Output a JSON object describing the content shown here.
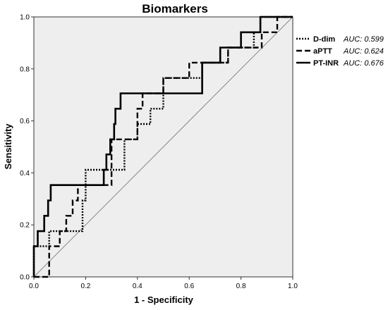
{
  "chart_data": {
    "type": "line",
    "title": "Biomarkers",
    "xlabel": "1 - Specificity",
    "ylabel": "Sensitivity",
    "xlim": [
      0,
      1
    ],
    "ylim": [
      0,
      1
    ],
    "x_ticks": [
      "0.0",
      "0.2",
      "0.4",
      "0.6",
      "0.8",
      "1.0"
    ],
    "y_ticks": [
      "0.0",
      "0.2",
      "0.4",
      "0.6",
      "0.8",
      "1.0"
    ],
    "grid": false,
    "legend_position": "top-right",
    "reference_line": {
      "from": [
        0,
        0
      ],
      "to": [
        1,
        1
      ]
    },
    "series": [
      {
        "name": "D-dim",
        "auc": "AUC: 0.599",
        "style": "dotted",
        "points": [
          [
            0,
            0
          ],
          [
            0,
            0.118
          ],
          [
            0.059,
            0.118
          ],
          [
            0.059,
            0.176
          ],
          [
            0.188,
            0.176
          ],
          [
            0.188,
            0.294
          ],
          [
            0.2,
            0.294
          ],
          [
            0.2,
            0.412
          ],
          [
            0.35,
            0.412
          ],
          [
            0.35,
            0.529
          ],
          [
            0.4,
            0.529
          ],
          [
            0.4,
            0.588
          ],
          [
            0.45,
            0.588
          ],
          [
            0.45,
            0.647
          ],
          [
            0.5,
            0.647
          ],
          [
            0.5,
            0.765
          ],
          [
            0.55,
            0.765
          ],
          [
            0.65,
            0.765
          ],
          [
            0.65,
            0.824
          ],
          [
            0.75,
            0.824
          ],
          [
            0.75,
            0.882
          ],
          [
            0.85,
            0.882
          ],
          [
            0.85,
            0.941
          ],
          [
            0.875,
            0.941
          ],
          [
            0.875,
            1
          ],
          [
            1,
            1
          ]
        ]
      },
      {
        "name": "aPTT",
        "auc": "AUC: 0.624",
        "style": "dashed",
        "points": [
          [
            0,
            0
          ],
          [
            0.059,
            0
          ],
          [
            0.059,
            0.118
          ],
          [
            0.1,
            0.118
          ],
          [
            0.1,
            0.176
          ],
          [
            0.125,
            0.176
          ],
          [
            0.125,
            0.235
          ],
          [
            0.15,
            0.235
          ],
          [
            0.15,
            0.294
          ],
          [
            0.17,
            0.294
          ],
          [
            0.17,
            0.353
          ],
          [
            0.3,
            0.353
          ],
          [
            0.3,
            0.412
          ],
          [
            0.3,
            0.529
          ],
          [
            0.4,
            0.529
          ],
          [
            0.4,
            0.647
          ],
          [
            0.42,
            0.647
          ],
          [
            0.42,
            0.706
          ],
          [
            0.5,
            0.706
          ],
          [
            0.5,
            0.765
          ],
          [
            0.6,
            0.765
          ],
          [
            0.6,
            0.824
          ],
          [
            0.75,
            0.824
          ],
          [
            0.75,
            0.882
          ],
          [
            0.88,
            0.882
          ],
          [
            0.88,
            0.941
          ],
          [
            0.94,
            0.941
          ],
          [
            0.94,
            1
          ],
          [
            1,
            1
          ]
        ]
      },
      {
        "name": "PT-INR",
        "auc": "AUC: 0.676",
        "style": "solid",
        "points": [
          [
            0,
            0
          ],
          [
            0,
            0.118
          ],
          [
            0.015,
            0.118
          ],
          [
            0.015,
            0.176
          ],
          [
            0.04,
            0.176
          ],
          [
            0.04,
            0.235
          ],
          [
            0.055,
            0.235
          ],
          [
            0.055,
            0.294
          ],
          [
            0.065,
            0.294
          ],
          [
            0.065,
            0.353
          ],
          [
            0.27,
            0.353
          ],
          [
            0.27,
            0.412
          ],
          [
            0.28,
            0.412
          ],
          [
            0.28,
            0.471
          ],
          [
            0.295,
            0.471
          ],
          [
            0.295,
            0.529
          ],
          [
            0.31,
            0.529
          ],
          [
            0.31,
            0.588
          ],
          [
            0.315,
            0.588
          ],
          [
            0.315,
            0.647
          ],
          [
            0.335,
            0.647
          ],
          [
            0.335,
            0.706
          ],
          [
            0.65,
            0.706
          ],
          [
            0.65,
            0.824
          ],
          [
            0.72,
            0.824
          ],
          [
            0.72,
            0.882
          ],
          [
            0.8,
            0.882
          ],
          [
            0.8,
            0.941
          ],
          [
            0.875,
            0.941
          ],
          [
            0.875,
            1
          ],
          [
            1,
            1
          ]
        ]
      }
    ]
  }
}
